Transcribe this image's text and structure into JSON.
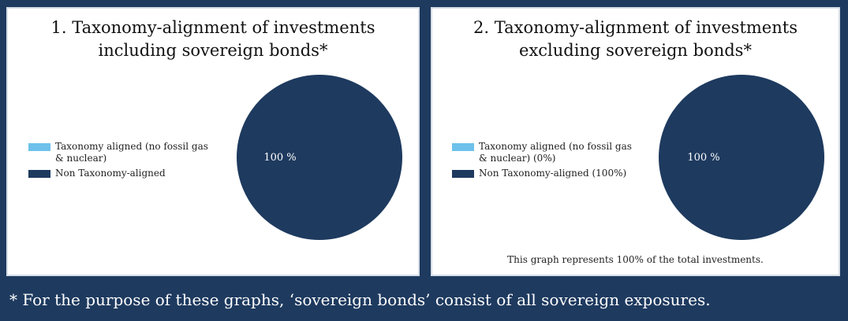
{
  "chart_data": [
    {
      "type": "pie",
      "title_lines": [
        "1. Taxonomy-alignment of investments",
        "including sovereign bonds*"
      ],
      "legend": [
        {
          "label": "Taxonomy aligned (no fossil gas & nuclear)",
          "color": "#6ec1ea"
        },
        {
          "label": "Non Taxonomy-aligned",
          "color": "#1e3a5f"
        }
      ],
      "slices": [
        {
          "name": "Taxonomy aligned (no fossil gas & nuclear)",
          "value": 0,
          "color": "#6ec1ea"
        },
        {
          "name": "Non Taxonomy-aligned",
          "value": 100,
          "color": "#1e3a5f"
        }
      ],
      "data_labels": [
        "100 %"
      ]
    },
    {
      "type": "pie",
      "title_lines": [
        "2. Taxonomy-alignment of investments",
        "excluding sovereign bonds*"
      ],
      "legend": [
        {
          "label": "Taxonomy aligned (no fossil gas & nuclear) (0%)",
          "color": "#6ec1ea"
        },
        {
          "label": "Non Taxonomy-aligned (100%)",
          "color": "#1e3a5f"
        }
      ],
      "slices": [
        {
          "name": "Taxonomy aligned (no fossil gas & nuclear)",
          "value": 0,
          "color": "#6ec1ea"
        },
        {
          "name": "Non Taxonomy-aligned",
          "value": 100,
          "color": "#1e3a5f"
        }
      ],
      "data_labels": [
        "100 %"
      ],
      "note": "This graph represents 100% of the total investments."
    }
  ],
  "footer": "* For the purpose of these graphs, ‘sovereign bonds’ consist of all sovereign exposures."
}
